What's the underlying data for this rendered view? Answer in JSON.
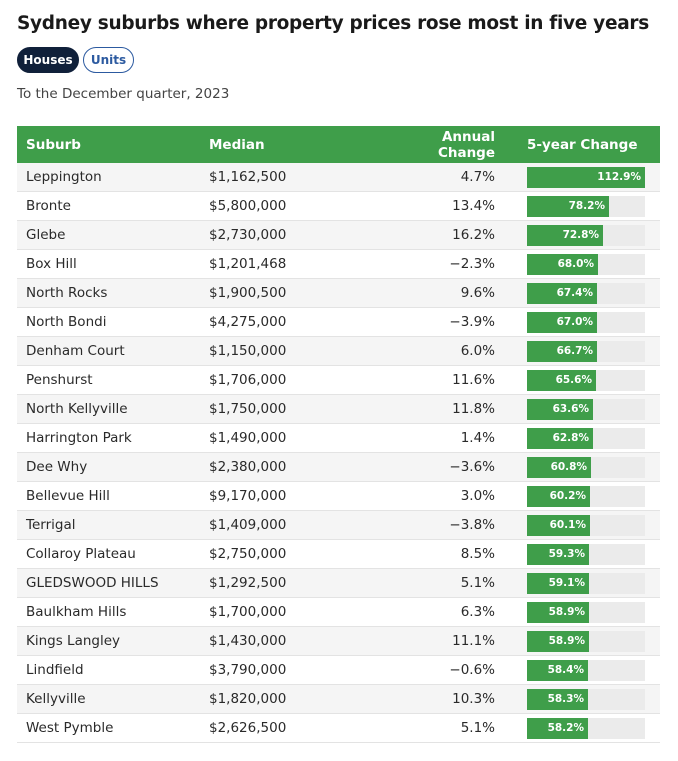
{
  "title": "Sydney suburbs where property prices rose most in five years",
  "toggles": [
    {
      "label": "Houses",
      "active": true
    },
    {
      "label": "Units",
      "active": false
    }
  ],
  "subtitle": "To the December quarter, 2023",
  "colors": {
    "header": "#3f9e4a",
    "bar": "#3f9e4a",
    "track": "#ebebeb",
    "active_toggle": "#10203a",
    "inactive_toggle": "#2c5aa0"
  },
  "chart_data": {
    "type": "table",
    "columns": [
      "Suburb",
      "Median",
      "Annual Change",
      "5-year Change"
    ],
    "bar_max": 112.9,
    "rows": [
      {
        "suburb": "Leppington",
        "median": "$1,162,500",
        "annual": "4.7%",
        "five_year": 112.9,
        "five_year_label": "112.9%"
      },
      {
        "suburb": "Bronte",
        "median": "$5,800,000",
        "annual": "13.4%",
        "five_year": 78.2,
        "five_year_label": "78.2%"
      },
      {
        "suburb": "Glebe",
        "median": "$2,730,000",
        "annual": "16.2%",
        "five_year": 72.8,
        "five_year_label": "72.8%"
      },
      {
        "suburb": "Box Hill",
        "median": "$1,201,468",
        "annual": "−2.3%",
        "five_year": 68.0,
        "five_year_label": "68.0%"
      },
      {
        "suburb": "North Rocks",
        "median": "$1,900,500",
        "annual": "9.6%",
        "five_year": 67.4,
        "five_year_label": "67.4%"
      },
      {
        "suburb": "North Bondi",
        "median": "$4,275,000",
        "annual": "−3.9%",
        "five_year": 67.0,
        "five_year_label": "67.0%"
      },
      {
        "suburb": "Denham Court",
        "median": "$1,150,000",
        "annual": "6.0%",
        "five_year": 66.7,
        "five_year_label": "66.7%"
      },
      {
        "suburb": "Penshurst",
        "median": "$1,706,000",
        "annual": "11.6%",
        "five_year": 65.6,
        "five_year_label": "65.6%"
      },
      {
        "suburb": "North Kellyville",
        "median": "$1,750,000",
        "annual": "11.8%",
        "five_year": 63.6,
        "five_year_label": "63.6%"
      },
      {
        "suburb": "Harrington Park",
        "median": "$1,490,000",
        "annual": "1.4%",
        "five_year": 62.8,
        "five_year_label": "62.8%"
      },
      {
        "suburb": "Dee Why",
        "median": "$2,380,000",
        "annual": "−3.6%",
        "five_year": 60.8,
        "five_year_label": "60.8%"
      },
      {
        "suburb": "Bellevue Hill",
        "median": "$9,170,000",
        "annual": "3.0%",
        "five_year": 60.2,
        "five_year_label": "60.2%"
      },
      {
        "suburb": "Terrigal",
        "median": "$1,409,000",
        "annual": "−3.8%",
        "five_year": 60.1,
        "five_year_label": "60.1%"
      },
      {
        "suburb": "Collaroy Plateau",
        "median": "$2,750,000",
        "annual": "8.5%",
        "five_year": 59.3,
        "five_year_label": "59.3%"
      },
      {
        "suburb": "GLEDSWOOD HILLS",
        "median": "$1,292,500",
        "annual": "5.1%",
        "five_year": 59.1,
        "five_year_label": "59.1%"
      },
      {
        "suburb": "Baulkham Hills",
        "median": "$1,700,000",
        "annual": "6.3%",
        "five_year": 58.9,
        "five_year_label": "58.9%"
      },
      {
        "suburb": "Kings Langley",
        "median": "$1,430,000",
        "annual": "11.1%",
        "five_year": 58.9,
        "five_year_label": "58.9%"
      },
      {
        "suburb": "Lindfield",
        "median": "$3,790,000",
        "annual": "−0.6%",
        "five_year": 58.4,
        "five_year_label": "58.4%"
      },
      {
        "suburb": "Kellyville",
        "median": "$1,820,000",
        "annual": "10.3%",
        "five_year": 58.3,
        "five_year_label": "58.3%"
      },
      {
        "suburb": "West Pymble",
        "median": "$2,626,500",
        "annual": "5.1%",
        "five_year": 58.2,
        "five_year_label": "58.2%"
      }
    ]
  }
}
